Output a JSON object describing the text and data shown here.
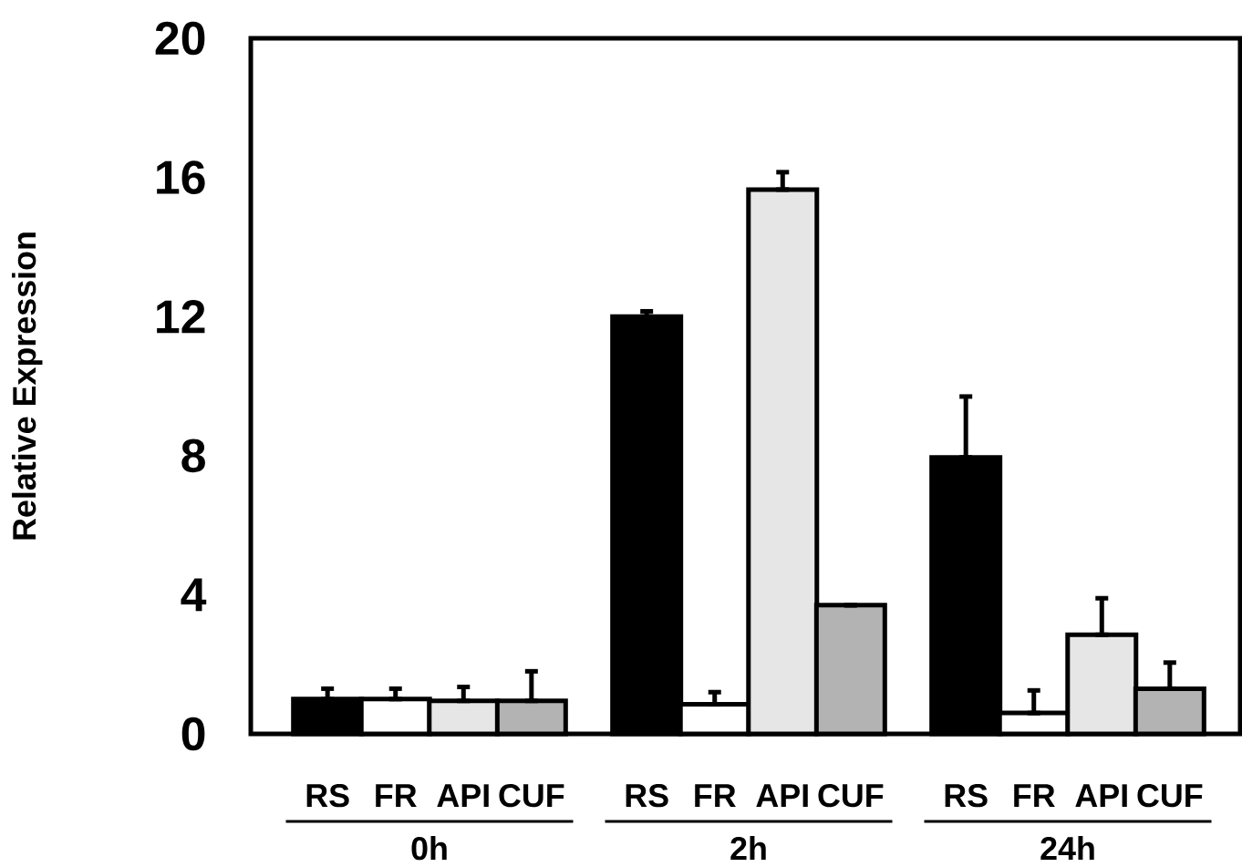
{
  "chart_data": {
    "type": "bar",
    "ylabel": "Relative Expression",
    "categories": [
      "0h",
      "2h",
      "24h"
    ],
    "series": [
      {
        "name": "RS",
        "color": "#000000",
        "values": [
          1.0,
          12.0,
          7.95
        ],
        "errors": [
          [
            1.0,
            1.3
          ],
          [
            12.0,
            12.15
          ],
          [
            7.95,
            9.7
          ]
        ]
      },
      {
        "name": "FR",
        "color": "#ffffff",
        "values": [
          1.0,
          0.85,
          0.6
        ],
        "errors": [
          [
            1.0,
            1.3
          ],
          [
            0.85,
            1.2
          ],
          [
            0.6,
            1.25
          ]
        ]
      },
      {
        "name": "API",
        "color": "#e6e6e6",
        "values": [
          0.95,
          15.65,
          2.85
        ],
        "errors": [
          [
            0.95,
            1.35
          ],
          [
            15.65,
            16.15
          ],
          [
            2.85,
            3.9
          ]
        ]
      },
      {
        "name": "CUF",
        "color": "#b3b3b3",
        "values": [
          0.95,
          3.7,
          1.3
        ],
        "errors": [
          [
            0.95,
            1.8
          ],
          null,
          [
            1.3,
            2.05
          ]
        ]
      }
    ],
    "ylim": [
      0,
      20
    ],
    "yticks": [
      0,
      4,
      8,
      12,
      16,
      20
    ],
    "grid": false
  }
}
